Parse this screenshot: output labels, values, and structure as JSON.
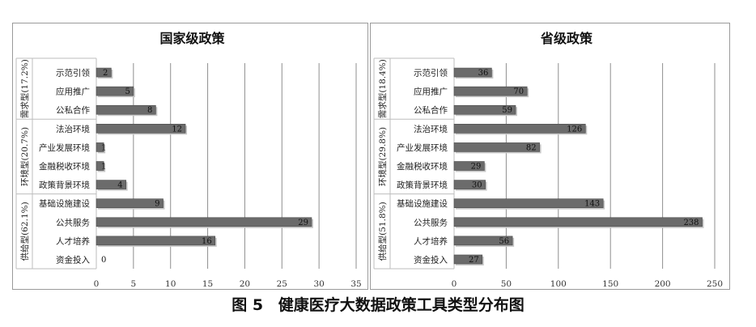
{
  "caption": {
    "fig_no": "图 5",
    "title": "健康医疗大数据政策工具类型分布图"
  },
  "chart_data": [
    {
      "type": "bar",
      "orientation": "horizontal",
      "title": "国家级政策",
      "categories": [
        "示范引领",
        "应用推广",
        "公私合作",
        "法治环境",
        "产业发展环境",
        "金融税收环境",
        "政策背景环境",
        "基础设施建设",
        "公共服务",
        "人才培养",
        "资金投入"
      ],
      "values": [
        2,
        5,
        8,
        12,
        1,
        1,
        4,
        9,
        29,
        16,
        0
      ],
      "groups": [
        {
          "label": "需求型(17.2%)",
          "count": 3
        },
        {
          "label": "环境型(20.7%)",
          "count": 4
        },
        {
          "label": "供给型(62.1%)",
          "count": 4
        }
      ],
      "xlim": [
        0,
        35
      ],
      "xticks": [
        0,
        5,
        10,
        15,
        20,
        25,
        30,
        35
      ],
      "grid": true,
      "bar_color": "#6b6b6b"
    },
    {
      "type": "bar",
      "orientation": "horizontal",
      "title": "省级政策",
      "categories": [
        "示范引领",
        "应用推广",
        "公私合作",
        "法治环境",
        "产业发展环境",
        "金融税收环境",
        "政策背景环境",
        "基础设施建设",
        "公共服务",
        "人才培养",
        "资金投入"
      ],
      "values": [
        36,
        70,
        59,
        126,
        82,
        29,
        30,
        143,
        238,
        56,
        27
      ],
      "groups": [
        {
          "label": "需求型(18.4%)",
          "count": 3
        },
        {
          "label": "环境型(29.8%)",
          "count": 4
        },
        {
          "label": "供给型(51.8%)",
          "count": 4
        }
      ],
      "xlim": [
        0,
        250
      ],
      "xticks": [
        0,
        50,
        100,
        150,
        200,
        250
      ],
      "grid": true,
      "bar_color": "#6b6b6b"
    }
  ]
}
